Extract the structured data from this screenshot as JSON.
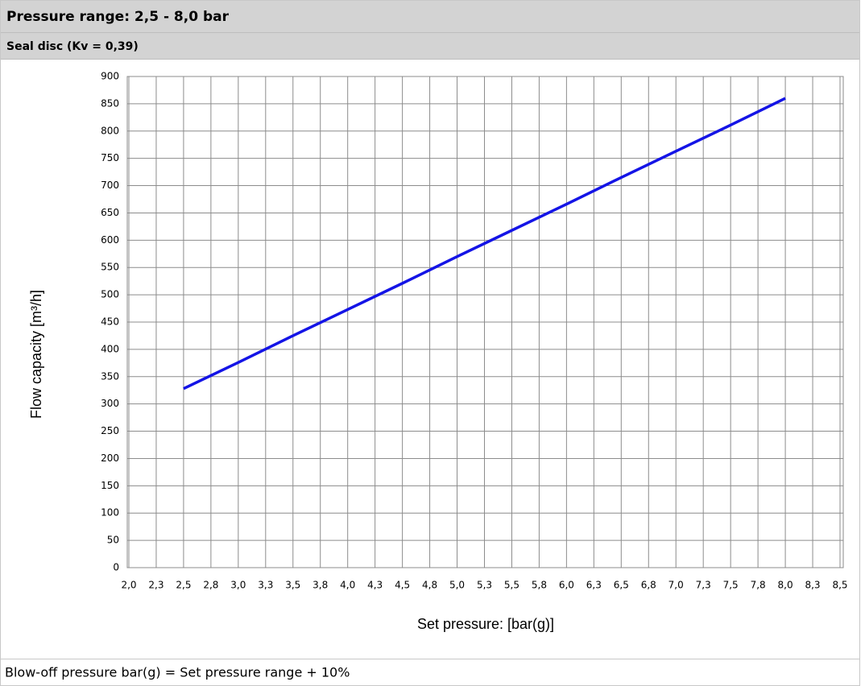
{
  "chart_data": {
    "type": "line",
    "title": "Pressure range: 2,5 - 8,0 bar",
    "subtitle": "Seal disc (Kv = 0,39)",
    "x_label": "Set pressure: [bar(g)]",
    "y_label": "Flow capacity [m³/h]",
    "x": [
      2.5,
      3.0,
      3.5,
      4.0,
      4.5,
      5.0,
      5.5,
      6.0,
      6.5,
      7.0,
      7.5,
      8.0
    ],
    "series": [
      {
        "color": "#1414e6",
        "values": [
          328,
          376,
          425,
          473,
          521,
          570,
          618,
          666,
          715,
          763,
          811,
          860
        ]
      }
    ],
    "xlim": [
      2.0,
      8.5
    ],
    "ylim": [
      0,
      900
    ],
    "xticks": [
      {
        "value": 2.0,
        "label": "2,0"
      },
      {
        "value": 2.25,
        "label": "2,3"
      },
      {
        "value": 2.5,
        "label": "2,5"
      },
      {
        "value": 2.75,
        "label": "2,8"
      },
      {
        "value": 3.0,
        "label": "3,0"
      },
      {
        "value": 3.25,
        "label": "3,3"
      },
      {
        "value": 3.5,
        "label": "3,5"
      },
      {
        "value": 3.75,
        "label": "3,8"
      },
      {
        "value": 4.0,
        "label": "4,0"
      },
      {
        "value": 4.25,
        "label": "4,3"
      },
      {
        "value": 4.5,
        "label": "4,5"
      },
      {
        "value": 4.75,
        "label": "4,8"
      },
      {
        "value": 5.0,
        "label": "5,0"
      },
      {
        "value": 5.25,
        "label": "5,3"
      },
      {
        "value": 5.5,
        "label": "5,5"
      },
      {
        "value": 5.75,
        "label": "5,8"
      },
      {
        "value": 6.0,
        "label": "6,0"
      },
      {
        "value": 6.25,
        "label": "6,3"
      },
      {
        "value": 6.5,
        "label": "6,5"
      },
      {
        "value": 6.75,
        "label": "6,8"
      },
      {
        "value": 7.0,
        "label": "7,0"
      },
      {
        "value": 7.25,
        "label": "7,3"
      },
      {
        "value": 7.5,
        "label": "7,5"
      },
      {
        "value": 7.75,
        "label": "7,8"
      },
      {
        "value": 8.0,
        "label": "8,0"
      },
      {
        "value": 8.25,
        "label": "8,3"
      },
      {
        "value": 8.5,
        "label": "8,5"
      }
    ],
    "yticks": [
      0,
      50,
      100,
      150,
      200,
      250,
      300,
      350,
      400,
      450,
      500,
      550,
      600,
      650,
      700,
      750,
      800,
      850,
      900
    ],
    "grid": true
  },
  "footer": {
    "text": "Blow-off pressure bar(g) = Set pressure range + 10%"
  }
}
